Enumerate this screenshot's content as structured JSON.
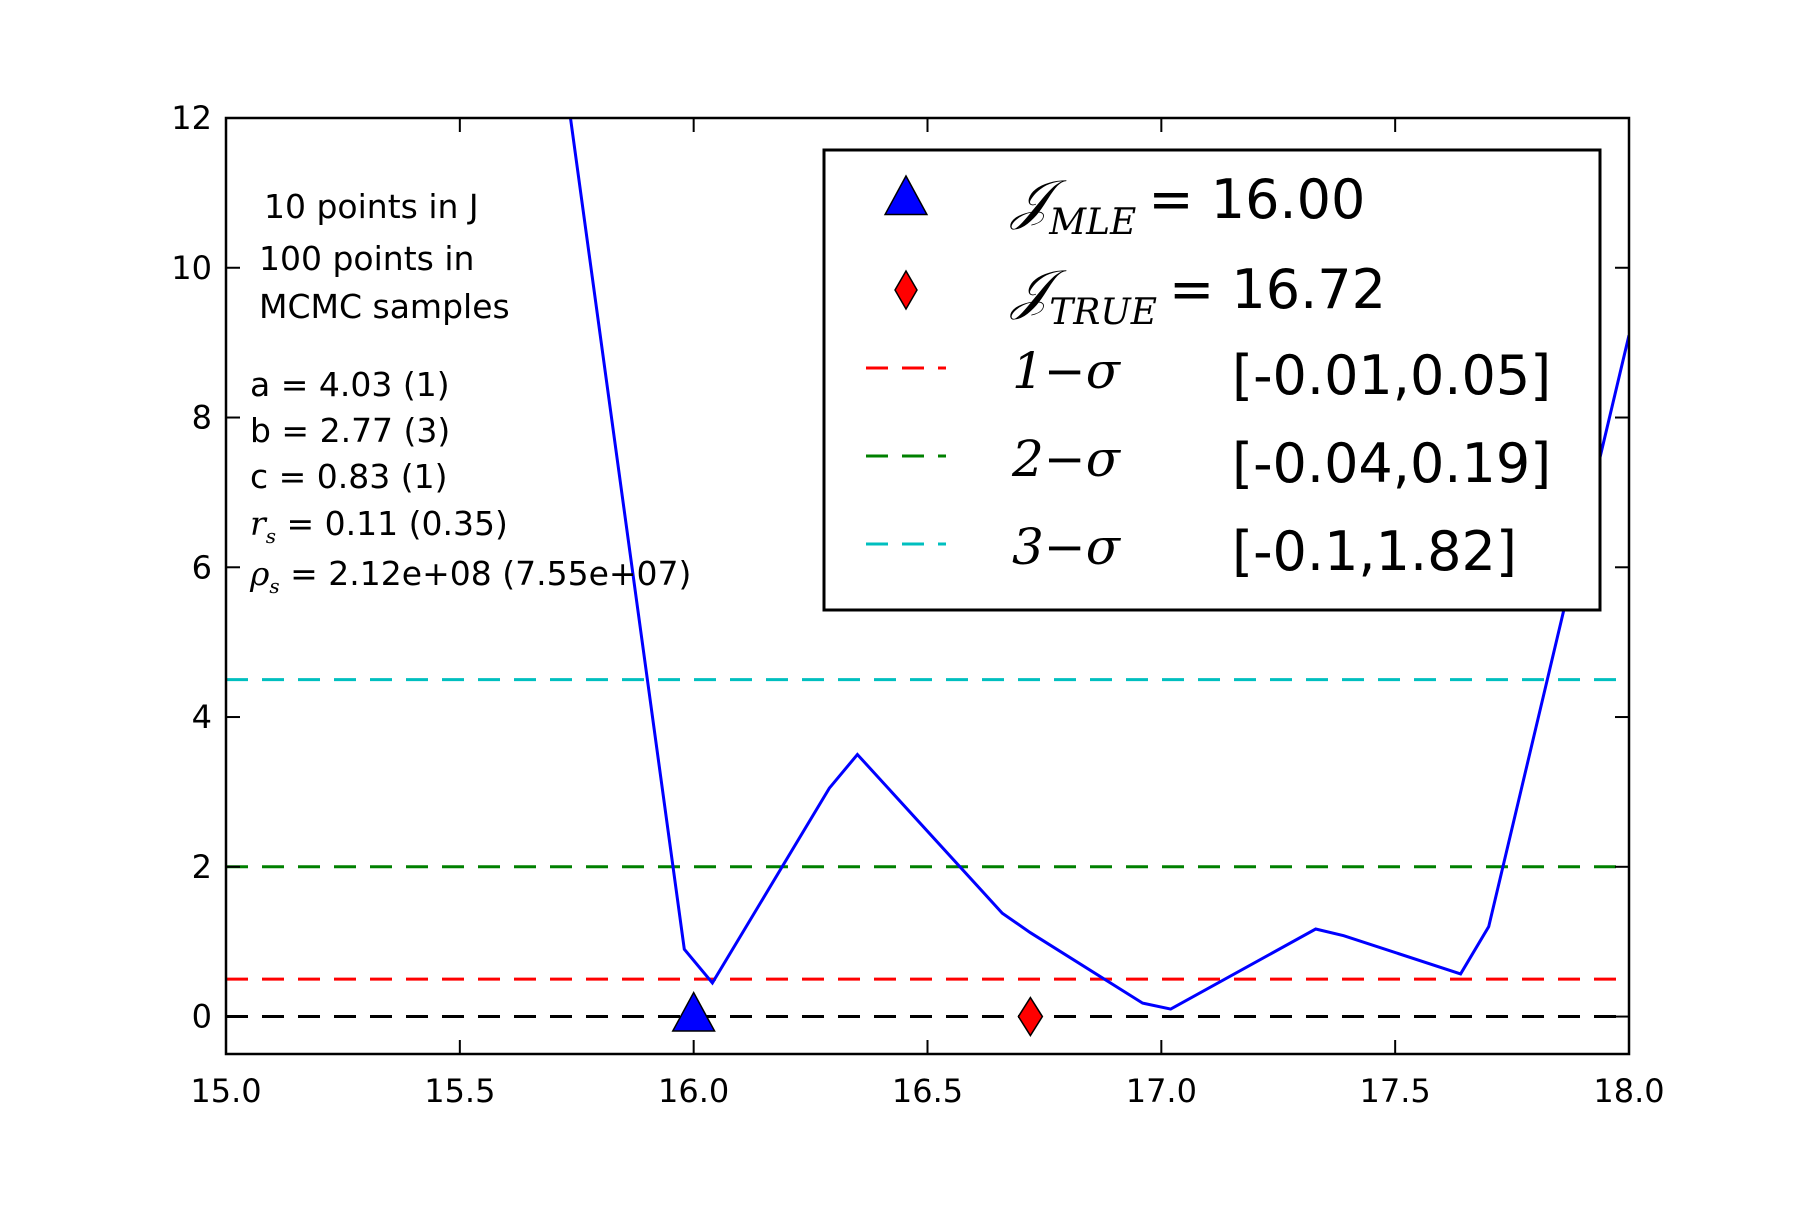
{
  "chart_data": {
    "type": "line",
    "title": "",
    "xlabel": "",
    "ylabel": "",
    "xlim": [
      15.0,
      18.0
    ],
    "ylim": [
      -0.5,
      12
    ],
    "xticks": [
      "15.0",
      "15.5",
      "16.0",
      "16.5",
      "17.0",
      "17.5",
      "18.0"
    ],
    "yticks": [
      "0",
      "2",
      "4",
      "6",
      "8",
      "10",
      "12"
    ],
    "xtick_values": [
      15.0,
      15.5,
      16.0,
      16.5,
      17.0,
      17.5,
      18.0
    ],
    "ytick_values": [
      0,
      2,
      4,
      6,
      8,
      10,
      12
    ],
    "grid": false,
    "series": [
      {
        "color": "#0000ff",
        "x": [
          15.73,
          15.98,
          16.04,
          16.29,
          16.35,
          16.66,
          16.72,
          16.96,
          17.02,
          17.33,
          17.39,
          17.64,
          17.7,
          18.0
        ],
        "values": [
          12.3,
          0.9,
          0.45,
          3.05,
          3.5,
          1.38,
          1.12,
          0.18,
          0.1,
          1.17,
          1.08,
          0.57,
          1.2,
          9.1
        ]
      }
    ],
    "hlines": [
      {
        "y": 0.0,
        "color": "#000000"
      },
      {
        "y": 0.5,
        "color": "#ff0000"
      },
      {
        "y": 2.0,
        "color": "#008000"
      },
      {
        "y": 4.5,
        "color": "#00bfbf"
      }
    ],
    "markers": [
      {
        "shape": "triangle",
        "x": 16.0,
        "y": 0.0,
        "color": "#0000ff"
      },
      {
        "shape": "diamond",
        "x": 16.72,
        "y": 0.0,
        "color": "#ff0000"
      }
    ],
    "annotations": [
      "10 points in J",
      "100 points in",
      "MCMC samples"
    ],
    "params": [
      {
        "sym": "",
        "text": "a = 4.03 (1)"
      },
      {
        "sym": "",
        "text": "b = 2.77 (3)"
      },
      {
        "sym": "",
        "text": "c = 0.83 (1)"
      },
      {
        "sym": "r",
        "sub": "s",
        "text": " = 0.11 (0.35)"
      },
      {
        "sym": "ρ",
        "sub": "s",
        "text": " = 2.12e+08 (7.55e+07)"
      }
    ],
    "legend": {
      "placement": "top-right",
      "entries": [
        {
          "marker": "triangle",
          "color": "#0000ff",
          "sym": "𝒥",
          "sub": "MLE",
          "value": "= 16.00"
        },
        {
          "marker": "diamond",
          "color": "#ff0000",
          "sym": "𝒥",
          "sub": "TRUE",
          "value": "= 16.72"
        },
        {
          "marker": "dash",
          "color": "#ff0000",
          "label": "1−σ",
          "value": "[-0.01,0.05]"
        },
        {
          "marker": "dash",
          "color": "#008000",
          "label": "2−σ",
          "value": "[-0.04,0.19]"
        },
        {
          "marker": "dash",
          "color": "#00bfbf",
          "label": "3−σ",
          "value": "[-0.1,1.82]"
        }
      ]
    }
  }
}
